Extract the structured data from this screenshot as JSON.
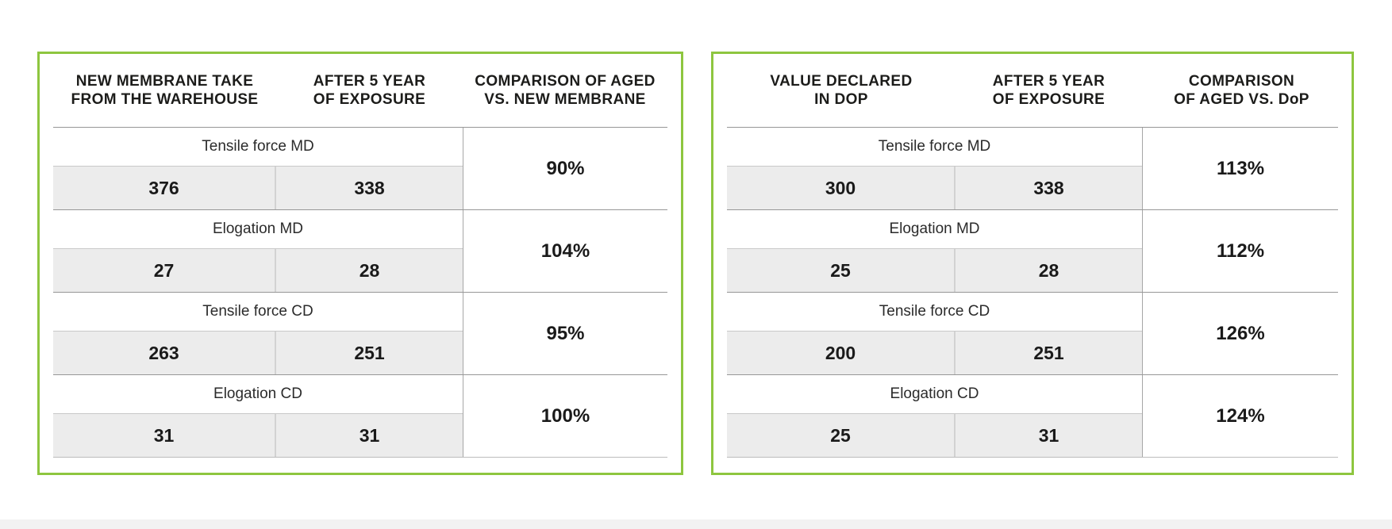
{
  "meta": {
    "background_color": "#ffffff",
    "accent_green": "#8ec63f",
    "value_row_fill": "#ececec",
    "text_color": "#1d1d1b"
  },
  "tables": [
    {
      "name": "aged-vs-new-membrane",
      "headers": [
        {
          "line1": "NEW MEMBRANE TAKE",
          "line2": "FROM THE WAREHOUSE"
        },
        {
          "line1": "AFTER 5 YEAR",
          "line2": "OF EXPOSURE"
        },
        {
          "line1": "COMPARISON OF AGED",
          "line2": "VS. NEW MEMBRANE"
        }
      ],
      "rows": [
        {
          "label": "Tensile force MD",
          "values": [
            "376",
            "338"
          ],
          "comparison": "90%"
        },
        {
          "label": "Elogation MD",
          "values": [
            "27",
            "28"
          ],
          "comparison": "104%"
        },
        {
          "label": "Tensile force CD",
          "values": [
            "263",
            "251"
          ],
          "comparison": "95%"
        },
        {
          "label": "Elogation CD",
          "values": [
            "31",
            "31"
          ],
          "comparison": "100%"
        }
      ]
    },
    {
      "name": "aged-vs-dop",
      "headers": [
        {
          "line1": "VALUE DECLARED",
          "line2": "IN DOP"
        },
        {
          "line1": "AFTER 5 YEAR",
          "line2": "OF EXPOSURE"
        },
        {
          "line1": "COMPARISON",
          "line2": "OF AGED VS. DoP"
        }
      ],
      "rows": [
        {
          "label": "Tensile force MD",
          "values": [
            "300",
            "338"
          ],
          "comparison": "113%"
        },
        {
          "label": "Elogation MD",
          "values": [
            "25",
            "28"
          ],
          "comparison": "112%"
        },
        {
          "label": "Tensile force CD",
          "values": [
            "200",
            "251"
          ],
          "comparison": "126%"
        },
        {
          "label": "Elogation CD",
          "values": [
            "25",
            "31"
          ],
          "comparison": "124%"
        }
      ]
    }
  ],
  "chart_data": [
    {
      "type": "table",
      "columns": [
        "NEW MEMBRANE TAKE FROM THE WAREHOUSE",
        "AFTER 5 YEAR OF EXPOSURE",
        "COMPARISON OF AGED VS. NEW MEMBRANE"
      ],
      "rows": [
        {
          "metric": "Tensile force MD",
          "new_membrane": 376,
          "after_5_year_exposure": 338,
          "comparison_pct": 90
        },
        {
          "metric": "Elogation MD",
          "new_membrane": 27,
          "after_5_year_exposure": 28,
          "comparison_pct": 104
        },
        {
          "metric": "Tensile force CD",
          "new_membrane": 263,
          "after_5_year_exposure": 251,
          "comparison_pct": 95
        },
        {
          "metric": "Elogation CD",
          "new_membrane": 31,
          "after_5_year_exposure": 31,
          "comparison_pct": 100
        }
      ]
    },
    {
      "type": "table",
      "columns": [
        "VALUE DECLARED IN DOP",
        "AFTER 5 YEAR OF EXPOSURE",
        "COMPARISON OF AGED VS. DoP"
      ],
      "rows": [
        {
          "metric": "Tensile force MD",
          "value_declared_in_dop": 300,
          "after_5_year_exposure": 338,
          "comparison_pct": 113
        },
        {
          "metric": "Elogation MD",
          "value_declared_in_dop": 25,
          "after_5_year_exposure": 28,
          "comparison_pct": 112
        },
        {
          "metric": "Tensile force CD",
          "value_declared_in_dop": 200,
          "after_5_year_exposure": 251,
          "comparison_pct": 126
        },
        {
          "metric": "Elogation CD",
          "value_declared_in_dop": 25,
          "after_5_year_exposure": 31,
          "comparison_pct": 124
        }
      ]
    }
  ]
}
